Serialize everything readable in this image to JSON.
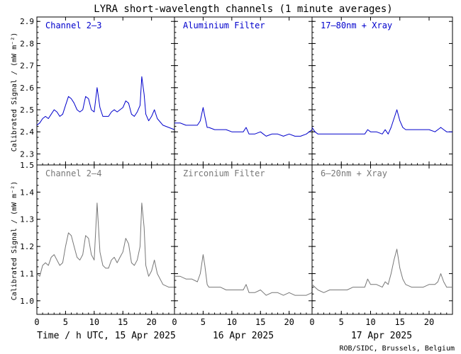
{
  "chart_data": {
    "type": "line",
    "title": "LYRA short-wavelength channels (1 minute averages)",
    "ylabel": "Calibrated Signal / (mW m⁻²)",
    "x_ticks": [
      "0",
      "5",
      "10",
      "15",
      "20"
    ],
    "days": [
      {
        "label": "Time / h UTC, 15 Apr 2025",
        "xlim": [
          0,
          24
        ]
      },
      {
        "label": "16 Apr 2025",
        "xlim": [
          0,
          24
        ]
      },
      {
        "label": "17 Apr 2025",
        "xlim": [
          0,
          24
        ]
      }
    ],
    "credit": "ROB/SIDC, Brussels, Belgium",
    "colors": {
      "top": "#0000cc",
      "bottom": "#777777",
      "axes": "#000000"
    },
    "rows": [
      {
        "ylim": [
          2.25,
          2.92
        ],
        "y_ticks": [
          "2.3",
          "2.4",
          "2.5",
          "2.6",
          "2.7",
          "2.8",
          "2.9"
        ],
        "panels": [
          {
            "label": "Channel 2–3",
            "points": [
              [
                0,
                2.43
              ],
              [
                0.5,
                2.44
              ],
              [
                1,
                2.46
              ],
              [
                1.5,
                2.47
              ],
              [
                2,
                2.46
              ],
              [
                2.5,
                2.48
              ],
              [
                3,
                2.5
              ],
              [
                3.5,
                2.49
              ],
              [
                4,
                2.47
              ],
              [
                4.5,
                2.48
              ],
              [
                5,
                2.52
              ],
              [
                5.5,
                2.56
              ],
              [
                6,
                2.55
              ],
              [
                6.5,
                2.53
              ],
              [
                7,
                2.5
              ],
              [
                7.5,
                2.49
              ],
              [
                8,
                2.5
              ],
              [
                8.5,
                2.56
              ],
              [
                9,
                2.55
              ],
              [
                9.5,
                2.5
              ],
              [
                10,
                2.49
              ],
              [
                10.5,
                2.6
              ],
              [
                11,
                2.51
              ],
              [
                11.5,
                2.47
              ],
              [
                12,
                2.47
              ],
              [
                12.5,
                2.47
              ],
              [
                13,
                2.49
              ],
              [
                13.5,
                2.5
              ],
              [
                14,
                2.49
              ],
              [
                14.5,
                2.5
              ],
              [
                15,
                2.51
              ],
              [
                15.5,
                2.54
              ],
              [
                16,
                2.53
              ],
              [
                16.5,
                2.48
              ],
              [
                17,
                2.47
              ],
              [
                17.5,
                2.49
              ],
              [
                18,
                2.52
              ],
              [
                18.3,
                2.65
              ],
              [
                18.7,
                2.57
              ],
              [
                19,
                2.48
              ],
              [
                19.5,
                2.45
              ],
              [
                20,
                2.47
              ],
              [
                20.5,
                2.5
              ],
              [
                21,
                2.46
              ],
              [
                22,
                2.43
              ],
              [
                23,
                2.42
              ],
              [
                24,
                2.41
              ]
            ]
          },
          {
            "label": "Aluminium Filter",
            "points": [
              [
                0,
                2.44
              ],
              [
                1,
                2.44
              ],
              [
                2,
                2.43
              ],
              [
                3,
                2.43
              ],
              [
                4,
                2.43
              ],
              [
                4.5,
                2.45
              ],
              [
                5,
                2.51
              ],
              [
                5.3,
                2.47
              ],
              [
                5.7,
                2.42
              ],
              [
                6,
                2.42
              ],
              [
                7,
                2.41
              ],
              [
                8,
                2.41
              ],
              [
                9,
                2.41
              ],
              [
                10,
                2.4
              ],
              [
                11,
                2.4
              ],
              [
                12,
                2.4
              ],
              [
                12.5,
                2.42
              ],
              [
                13,
                2.39
              ],
              [
                14,
                2.39
              ],
              [
                15,
                2.4
              ],
              [
                15.5,
                2.39
              ],
              [
                16,
                2.38
              ],
              [
                17,
                2.39
              ],
              [
                18,
                2.39
              ],
              [
                19,
                2.38
              ],
              [
                20,
                2.39
              ],
              [
                21,
                2.38
              ],
              [
                22,
                2.38
              ],
              [
                23,
                2.39
              ],
              [
                24,
                2.41
              ]
            ]
          },
          {
            "label": "17–80nm + Xray",
            "points": [
              [
                0,
                2.42
              ],
              [
                0.5,
                2.4
              ],
              [
                1,
                2.39
              ],
              [
                2,
                2.39
              ],
              [
                3,
                2.39
              ],
              [
                4,
                2.39
              ],
              [
                5,
                2.39
              ],
              [
                6,
                2.39
              ],
              [
                7,
                2.39
              ],
              [
                8,
                2.39
              ],
              [
                9,
                2.39
              ],
              [
                9.5,
                2.41
              ],
              [
                10,
                2.4
              ],
              [
                11,
                2.4
              ],
              [
                12,
                2.39
              ],
              [
                12.5,
                2.41
              ],
              [
                13,
                2.39
              ],
              [
                13.5,
                2.42
              ],
              [
                14,
                2.46
              ],
              [
                14.5,
                2.5
              ],
              [
                15,
                2.45
              ],
              [
                15.5,
                2.42
              ],
              [
                16,
                2.41
              ],
              [
                17,
                2.41
              ],
              [
                18,
                2.41
              ],
              [
                19,
                2.41
              ],
              [
                20,
                2.41
              ],
              [
                21,
                2.4
              ],
              [
                21.5,
                2.41
              ],
              [
                22,
                2.42
              ],
              [
                22.5,
                2.41
              ],
              [
                23,
                2.4
              ],
              [
                24,
                2.4
              ]
            ]
          }
        ]
      },
      {
        "ylim": [
          0.95,
          1.5
        ],
        "y_ticks": [
          "1.0",
          "1.1",
          "1.2",
          "1.3",
          "1.4",
          "1.5"
        ],
        "panels": [
          {
            "label": "Channel 2–4",
            "points": [
              [
                0,
                1.1
              ],
              [
                0.5,
                1.09
              ],
              [
                1,
                1.13
              ],
              [
                1.5,
                1.14
              ],
              [
                2,
                1.13
              ],
              [
                2.5,
                1.16
              ],
              [
                3,
                1.17
              ],
              [
                3.5,
                1.15
              ],
              [
                4,
                1.13
              ],
              [
                4.5,
                1.14
              ],
              [
                5,
                1.2
              ],
              [
                5.5,
                1.25
              ],
              [
                6,
                1.24
              ],
              [
                6.5,
                1.2
              ],
              [
                7,
                1.16
              ],
              [
                7.5,
                1.15
              ],
              [
                8,
                1.17
              ],
              [
                8.5,
                1.24
              ],
              [
                9,
                1.23
              ],
              [
                9.5,
                1.17
              ],
              [
                10,
                1.15
              ],
              [
                10.5,
                1.36
              ],
              [
                11,
                1.18
              ],
              [
                11.5,
                1.13
              ],
              [
                12,
                1.12
              ],
              [
                12.5,
                1.12
              ],
              [
                13,
                1.15
              ],
              [
                13.5,
                1.16
              ],
              [
                14,
                1.14
              ],
              [
                14.5,
                1.16
              ],
              [
                15,
                1.18
              ],
              [
                15.5,
                1.23
              ],
              [
                16,
                1.21
              ],
              [
                16.5,
                1.14
              ],
              [
                17,
                1.13
              ],
              [
                17.5,
                1.15
              ],
              [
                18,
                1.2
              ],
              [
                18.3,
                1.36
              ],
              [
                18.7,
                1.27
              ],
              [
                19,
                1.13
              ],
              [
                19.5,
                1.09
              ],
              [
                20,
                1.11
              ],
              [
                20.5,
                1.15
              ],
              [
                21,
                1.1
              ],
              [
                22,
                1.06
              ],
              [
                23,
                1.05
              ],
              [
                24,
                1.05
              ]
            ]
          },
          {
            "label": "Zirconium Filter",
            "points": [
              [
                0,
                1.09
              ],
              [
                1,
                1.09
              ],
              [
                2,
                1.08
              ],
              [
                3,
                1.08
              ],
              [
                4,
                1.07
              ],
              [
                4.5,
                1.1
              ],
              [
                5,
                1.17
              ],
              [
                5.3,
                1.13
              ],
              [
                5.7,
                1.06
              ],
              [
                6,
                1.05
              ],
              [
                7,
                1.05
              ],
              [
                8,
                1.05
              ],
              [
                9,
                1.04
              ],
              [
                10,
                1.04
              ],
              [
                11,
                1.04
              ],
              [
                12,
                1.04
              ],
              [
                12.5,
                1.06
              ],
              [
                13,
                1.03
              ],
              [
                14,
                1.03
              ],
              [
                15,
                1.04
              ],
              [
                15.5,
                1.03
              ],
              [
                16,
                1.02
              ],
              [
                17,
                1.03
              ],
              [
                18,
                1.03
              ],
              [
                19,
                1.02
              ],
              [
                20,
                1.03
              ],
              [
                21,
                1.02
              ],
              [
                22,
                1.02
              ],
              [
                23,
                1.02
              ],
              [
                24,
                1.03
              ]
            ]
          },
          {
            "label": "6–20nm + Xray",
            "points": [
              [
                0,
                1.06
              ],
              [
                0.5,
                1.05
              ],
              [
                1,
                1.04
              ],
              [
                2,
                1.03
              ],
              [
                3,
                1.04
              ],
              [
                4,
                1.04
              ],
              [
                5,
                1.04
              ],
              [
                6,
                1.04
              ],
              [
                7,
                1.05
              ],
              [
                8,
                1.05
              ],
              [
                9,
                1.05
              ],
              [
                9.5,
                1.08
              ],
              [
                10,
                1.06
              ],
              [
                11,
                1.06
              ],
              [
                12,
                1.05
              ],
              [
                12.5,
                1.07
              ],
              [
                13,
                1.06
              ],
              [
                13.5,
                1.1
              ],
              [
                14,
                1.15
              ],
              [
                14.5,
                1.19
              ],
              [
                15,
                1.12
              ],
              [
                15.5,
                1.08
              ],
              [
                16,
                1.06
              ],
              [
                17,
                1.05
              ],
              [
                18,
                1.05
              ],
              [
                19,
                1.05
              ],
              [
                20,
                1.06
              ],
              [
                21,
                1.06
              ],
              [
                21.5,
                1.07
              ],
              [
                22,
                1.1
              ],
              [
                22.5,
                1.07
              ],
              [
                23,
                1.05
              ],
              [
                24,
                1.05
              ]
            ]
          }
        ]
      }
    ]
  }
}
